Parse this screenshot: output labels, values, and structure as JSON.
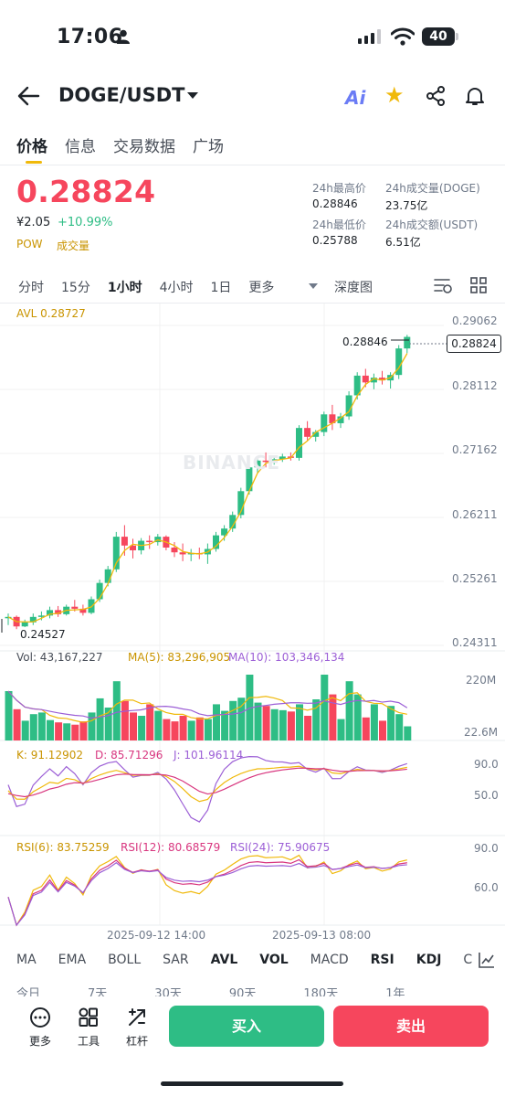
{
  "status_bar": {
    "time": "17:06",
    "battery": "40"
  },
  "header": {
    "pair": "DOGE/USDT",
    "ai_label": "Ai"
  },
  "tabs": [
    "价格",
    "信息",
    "交易数据",
    "广场"
  ],
  "ticker": {
    "price": "0.28824",
    "cny": "¥2.05",
    "change": "+10.99%",
    "tags": [
      "POW",
      "成交量"
    ],
    "stats": [
      {
        "label": "24h最高价",
        "value": "0.28846"
      },
      {
        "label": "24h成交量(DOGE)",
        "value": "23.75亿"
      },
      {
        "label": "24h最低价",
        "value": "0.25788"
      },
      {
        "label": "24h成交额(USDT)",
        "value": "6.51亿"
      }
    ]
  },
  "intervals": [
    "分时",
    "15分",
    "1小时",
    "4小时",
    "1日",
    "更多"
  ],
  "depth_label": "深度图",
  "main_chart": {
    "avl_label": "AVL 0.28727",
    "high_marker": "0.28846",
    "low_marker": "0.24527",
    "current_price": "0.28824",
    "price_axis": [
      "0.29062",
      "0.28112",
      "0.27162",
      "0.26211",
      "0.25261",
      "0.24311"
    ],
    "watermark": "BINANCE"
  },
  "volume_pane": {
    "vol": "Vol: 43,167,227",
    "ma5": "MA(5): 83,296,905",
    "ma10": "MA(10): 103,346,134",
    "axis_top": "220M",
    "axis_bottom": "22.6M"
  },
  "kdj_pane": {
    "k": "K: 91.12902",
    "d": "D: 85.71296",
    "j": "J: 101.96114",
    "axis": [
      "90.0",
      "50.0"
    ]
  },
  "rsi_pane": {
    "rsi6": "RSI(6): 83.75259",
    "rsi12": "RSI(12): 80.68579",
    "rsi24": "RSI(24): 75.90675",
    "axis": [
      "90.0",
      "60.0"
    ]
  },
  "time_axis": [
    "2025-09-12 14:00",
    "2025-09-13 08:00"
  ],
  "indicators": [
    "MA",
    "EMA",
    "BOLL",
    "SAR",
    "AVL",
    "VOL",
    "MACD",
    "RSI",
    "KDJ",
    "C"
  ],
  "ranges": [
    "今日",
    "7天",
    "30天",
    "90天",
    "180天",
    "1年"
  ],
  "bottom_bar": {
    "more": "更多",
    "tools": "工具",
    "leverage": "杠杆",
    "buy": "买入",
    "sell": "卖出"
  },
  "colors": {
    "up": "#2ebd85",
    "down": "#f6465d",
    "accent": "#f0b90b",
    "ma5": "#f0b90b",
    "ma10": "#9c5fd6"
  },
  "chart_data": {
    "type": "candlestick",
    "interval": "1小时",
    "y_range": [
      0.242,
      0.2915
    ],
    "candles": [
      [
        0.2468,
        0.2475,
        0.2458,
        0.247
      ],
      [
        0.247,
        0.2472,
        0.2452,
        0.2456
      ],
      [
        0.2456,
        0.2466,
        0.2455,
        0.2462
      ],
      [
        0.2462,
        0.2475,
        0.2458,
        0.247
      ],
      [
        0.247,
        0.2478,
        0.2465,
        0.2472
      ],
      [
        0.2472,
        0.2485,
        0.2468,
        0.248
      ],
      [
        0.248,
        0.2486,
        0.247,
        0.2474
      ],
      [
        0.2474,
        0.2488,
        0.2472,
        0.2485
      ],
      [
        0.2485,
        0.2495,
        0.2478,
        0.2482
      ],
      [
        0.2482,
        0.2488,
        0.2472,
        0.2476
      ],
      [
        0.2476,
        0.25,
        0.2474,
        0.2496
      ],
      [
        0.2496,
        0.2525,
        0.2492,
        0.252
      ],
      [
        0.252,
        0.2545,
        0.2515,
        0.254
      ],
      [
        0.254,
        0.2595,
        0.2536,
        0.2588
      ],
      [
        0.2588,
        0.2605,
        0.256,
        0.2575
      ],
      [
        0.2575,
        0.2585,
        0.2556,
        0.2568
      ],
      [
        0.2568,
        0.2586,
        0.2562,
        0.2582
      ],
      [
        0.2582,
        0.259,
        0.257,
        0.258
      ],
      [
        0.258,
        0.2592,
        0.2575,
        0.2588
      ],
      [
        0.2588,
        0.259,
        0.2568,
        0.2572
      ],
      [
        0.2572,
        0.258,
        0.2558,
        0.2565
      ],
      [
        0.2565,
        0.2578,
        0.2552,
        0.2562
      ],
      [
        0.2562,
        0.257,
        0.2552,
        0.2564
      ],
      [
        0.2564,
        0.2572,
        0.2555,
        0.2562
      ],
      [
        0.2562,
        0.2578,
        0.2548,
        0.257
      ],
      [
        0.257,
        0.2595,
        0.2566,
        0.259
      ],
      [
        0.259,
        0.2605,
        0.2582,
        0.26
      ],
      [
        0.26,
        0.2625,
        0.2595,
        0.262
      ],
      [
        0.262,
        0.266,
        0.2615,
        0.2655
      ],
      [
        0.2655,
        0.2695,
        0.265,
        0.269
      ],
      [
        0.269,
        0.2705,
        0.2682,
        0.27
      ],
      [
        0.27,
        0.2712,
        0.269,
        0.2698
      ],
      [
        0.2698,
        0.2706,
        0.2694,
        0.2702
      ],
      [
        0.2702,
        0.271,
        0.2698,
        0.2706
      ],
      [
        0.2706,
        0.2712,
        0.27,
        0.2704
      ],
      [
        0.2704,
        0.2752,
        0.27,
        0.2748
      ],
      [
        0.2748,
        0.2758,
        0.273,
        0.2735
      ],
      [
        0.2735,
        0.2745,
        0.2728,
        0.2742
      ],
      [
        0.2742,
        0.2772,
        0.2736,
        0.2768
      ],
      [
        0.2768,
        0.2782,
        0.2745,
        0.2755
      ],
      [
        0.2755,
        0.277,
        0.2748,
        0.2765
      ],
      [
        0.2765,
        0.2802,
        0.276,
        0.2796
      ],
      [
        0.2796,
        0.283,
        0.279,
        0.2825
      ],
      [
        0.2825,
        0.2835,
        0.2808,
        0.2815
      ],
      [
        0.2815,
        0.2828,
        0.2805,
        0.2822
      ],
      [
        0.2822,
        0.2832,
        0.2812,
        0.2818
      ],
      [
        0.2818,
        0.283,
        0.2806,
        0.2826
      ],
      [
        0.2826,
        0.287,
        0.282,
        0.2865
      ],
      [
        0.2865,
        0.2885,
        0.2858,
        0.2882
      ]
    ],
    "volume_range": [
      22600000,
      220000000
    ],
    "volumes": [
      150,
      95,
      60,
      80,
      85,
      62,
      55,
      52,
      48,
      58,
      85,
      128,
      100,
      180,
      120,
      85,
      75,
      110,
      90,
      65,
      58,
      75,
      60,
      70,
      65,
      110,
      90,
      120,
      130,
      200,
      115,
      105,
      95,
      92,
      88,
      110,
      75,
      125,
      200,
      140,
      65,
      180,
      140,
      70,
      110,
      60,
      105,
      80,
      43
    ]
  }
}
